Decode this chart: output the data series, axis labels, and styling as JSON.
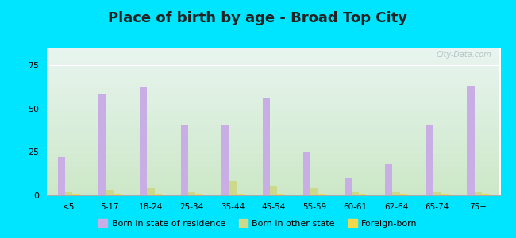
{
  "title": "Place of birth by age - Broad Top City",
  "categories": [
    "<5",
    "5-17",
    "18-24",
    "25-34",
    "35-44",
    "45-54",
    "55-59",
    "60-61",
    "62-64",
    "65-74",
    "75+"
  ],
  "born_in_state": [
    22,
    58,
    62,
    40,
    40,
    56,
    25,
    10,
    18,
    40,
    63
  ],
  "born_other_state": [
    2,
    3,
    4,
    2,
    8,
    5,
    4,
    2,
    2,
    2,
    2
  ],
  "foreign_born": [
    1,
    1,
    1,
    1,
    1,
    1,
    1,
    1,
    1,
    1,
    1
  ],
  "bar_color_state": "#c9aee5",
  "bar_color_other": "#ccd98a",
  "bar_color_foreign": "#f0d84a",
  "bg_outer": "#00e5ff",
  "bg_plot_top": "#e8f5f0",
  "bg_plot_bottom": "#cde8c8",
  "ylim": [
    0,
    85
  ],
  "yticks": [
    0,
    25,
    50,
    75
  ],
  "title_fontsize": 13,
  "bar_width": 0.18,
  "legend_labels": [
    "Born in state of residence",
    "Born in other state",
    "Foreign-born"
  ]
}
